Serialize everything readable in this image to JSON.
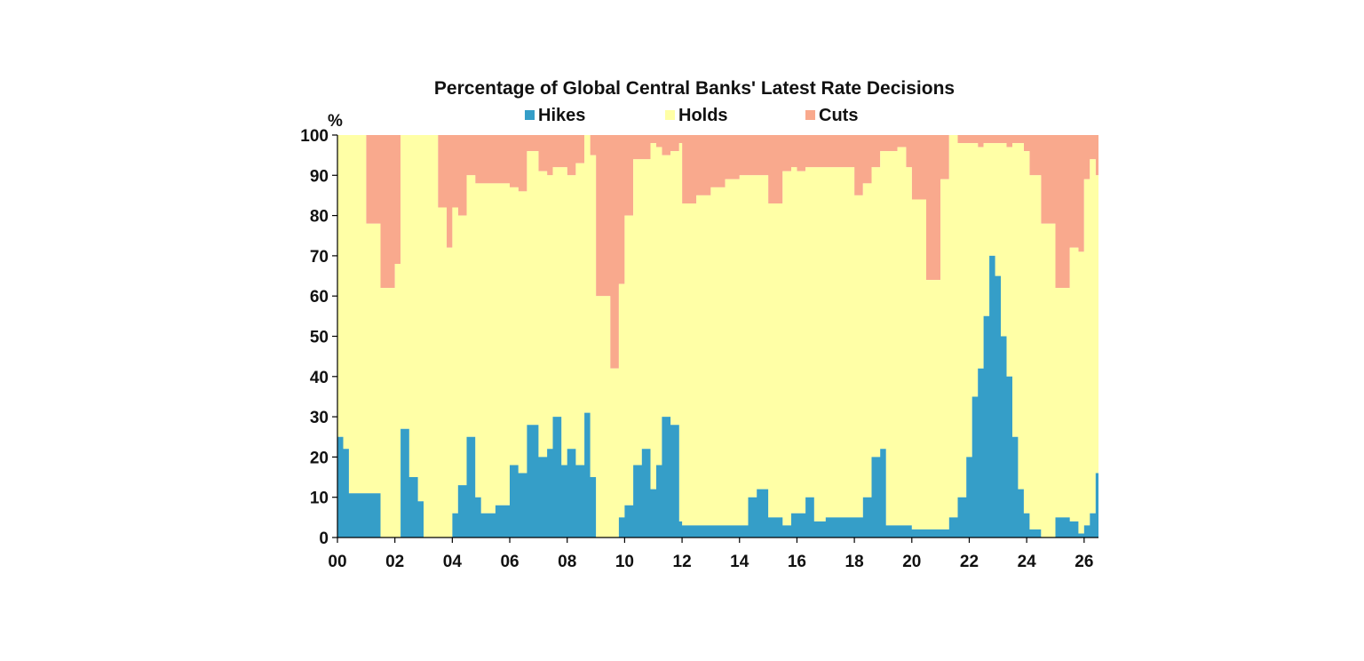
{
  "chart_data": {
    "type": "area",
    "stacked": true,
    "percent_stacked": true,
    "title": "Percentage of Global Central Banks' Latest Rate Decisions",
    "ylabel": "%",
    "xlabel": "",
    "ylim": [
      0,
      100
    ],
    "xlim": [
      2000,
      2026.5
    ],
    "yticks": [
      "0",
      "10",
      "20",
      "30",
      "40",
      "50",
      "60",
      "70",
      "80",
      "90",
      "100"
    ],
    "xticks": [
      {
        "x": 2000,
        "label": "00"
      },
      {
        "x": 2002,
        "label": "02"
      },
      {
        "x": 2004,
        "label": "04"
      },
      {
        "x": 2006,
        "label": "06"
      },
      {
        "x": 2008,
        "label": "08"
      },
      {
        "x": 2010,
        "label": "10"
      },
      {
        "x": 2012,
        "label": "12"
      },
      {
        "x": 2014,
        "label": "14"
      },
      {
        "x": 2016,
        "label": "16"
      },
      {
        "x": 2018,
        "label": "18"
      },
      {
        "x": 2020,
        "label": "20"
      },
      {
        "x": 2022,
        "label": "22"
      },
      {
        "x": 2024,
        "label": "24"
      },
      {
        "x": 2026,
        "label": "26"
      }
    ],
    "legend_position": "top-center",
    "grid": false,
    "colors": {
      "Hikes": "#359ec8",
      "Holds": "#ffffa6",
      "Cuts": "#f9a98d"
    },
    "series": [
      {
        "name": "Hikes",
        "x": [
          2000.0,
          2000.2,
          2000.4,
          2000.6,
          2001.0,
          2001.5,
          2002.0,
          2002.2,
          2002.5,
          2002.8,
          2003.0,
          2003.5,
          2003.8,
          2004.0,
          2004.2,
          2004.5,
          2004.8,
          2005.0,
          2005.5,
          2006.0,
          2006.3,
          2006.6,
          2007.0,
          2007.3,
          2007.5,
          2007.8,
          2008.0,
          2008.3,
          2008.6,
          2008.8,
          2009.0,
          2009.5,
          2009.8,
          2010.0,
          2010.3,
          2010.6,
          2010.9,
          2011.1,
          2011.3,
          2011.6,
          2011.9,
          2012.0,
          2012.5,
          2013.0,
          2013.5,
          2014.0,
          2014.3,
          2014.6,
          2015.0,
          2015.5,
          2015.8,
          2016.0,
          2016.3,
          2016.6,
          2017.0,
          2017.5,
          2018.0,
          2018.3,
          2018.6,
          2018.9,
          2019.1,
          2019.5,
          2019.8,
          2020.0,
          2020.5,
          2021.0,
          2021.3,
          2021.6,
          2021.9,
          2022.1,
          2022.3,
          2022.5,
          2022.7,
          2022.9,
          2023.1,
          2023.3,
          2023.5,
          2023.7,
          2023.9,
          2024.1,
          2024.5,
          2025.0,
          2025.5,
          2025.8,
          2026.0,
          2026.2,
          2026.4
        ],
        "values": [
          25,
          22,
          11,
          11,
          11,
          0,
          0,
          27,
          15,
          9,
          0,
          0,
          0,
          6,
          13,
          25,
          10,
          6,
          8,
          18,
          16,
          28,
          20,
          22,
          30,
          18,
          22,
          18,
          31,
          15,
          0,
          0,
          5,
          8,
          18,
          22,
          12,
          18,
          30,
          28,
          4,
          3,
          3,
          3,
          3,
          3,
          10,
          12,
          5,
          3,
          6,
          6,
          10,
          4,
          5,
          5,
          5,
          10,
          20,
          22,
          3,
          3,
          3,
          2,
          2,
          2,
          5,
          10,
          20,
          35,
          42,
          55,
          70,
          65,
          50,
          40,
          25,
          12,
          6,
          2,
          0,
          5,
          4,
          1,
          3,
          6,
          16
        ]
      },
      {
        "name": "Holds",
        "x": [
          2000.0,
          2000.2,
          2000.4,
          2000.6,
          2001.0,
          2001.5,
          2002.0,
          2002.2,
          2002.5,
          2002.8,
          2003.0,
          2003.5,
          2003.8,
          2004.0,
          2004.2,
          2004.5,
          2004.8,
          2005.0,
          2005.5,
          2006.0,
          2006.3,
          2006.6,
          2007.0,
          2007.3,
          2007.5,
          2007.8,
          2008.0,
          2008.3,
          2008.6,
          2008.8,
          2009.0,
          2009.5,
          2009.8,
          2010.0,
          2010.3,
          2010.6,
          2010.9,
          2011.1,
          2011.3,
          2011.6,
          2011.9,
          2012.0,
          2012.5,
          2013.0,
          2013.5,
          2014.0,
          2014.3,
          2014.6,
          2015.0,
          2015.5,
          2015.8,
          2016.0,
          2016.3,
          2016.6,
          2017.0,
          2017.5,
          2018.0,
          2018.3,
          2018.6,
          2018.9,
          2019.1,
          2019.5,
          2019.8,
          2020.0,
          2020.5,
          2021.0,
          2021.3,
          2021.6,
          2021.9,
          2022.1,
          2022.3,
          2022.5,
          2022.7,
          2022.9,
          2023.1,
          2023.3,
          2023.5,
          2023.7,
          2023.9,
          2024.1,
          2024.5,
          2025.0,
          2025.5,
          2025.8,
          2026.0,
          2026.2,
          2026.4
        ],
        "values": [
          75,
          78,
          89,
          89,
          67,
          62,
          68,
          73,
          85,
          91,
          100,
          82,
          72,
          76,
          67,
          65,
          78,
          82,
          80,
          69,
          70,
          68,
          71,
          68,
          62,
          74,
          68,
          75,
          69,
          80,
          60,
          42,
          58,
          72,
          76,
          72,
          86,
          79,
          65,
          68,
          94,
          80,
          82,
          84,
          86,
          87,
          80,
          78,
          78,
          88,
          86,
          85,
          82,
          88,
          87,
          87,
          80,
          78,
          72,
          74,
          93,
          94,
          89,
          82,
          62,
          87,
          95,
          88,
          78,
          63,
          55,
          43,
          28,
          33,
          48,
          57,
          73,
          86,
          90,
          88,
          78,
          57,
          68,
          70,
          86,
          88,
          74
        ]
      },
      {
        "name": "Cuts",
        "x": [
          2000.0,
          2000.2,
          2000.4,
          2000.6,
          2001.0,
          2001.5,
          2002.0,
          2002.2,
          2002.5,
          2002.8,
          2003.0,
          2003.5,
          2003.8,
          2004.0,
          2004.2,
          2004.5,
          2004.8,
          2005.0,
          2005.5,
          2006.0,
          2006.3,
          2006.6,
          2007.0,
          2007.3,
          2007.5,
          2007.8,
          2008.0,
          2008.3,
          2008.6,
          2008.8,
          2009.0,
          2009.5,
          2009.8,
          2010.0,
          2010.3,
          2010.6,
          2010.9,
          2011.1,
          2011.3,
          2011.6,
          2011.9,
          2012.0,
          2012.5,
          2013.0,
          2013.5,
          2014.0,
          2014.3,
          2014.6,
          2015.0,
          2015.5,
          2015.8,
          2016.0,
          2016.3,
          2016.6,
          2017.0,
          2017.5,
          2018.0,
          2018.3,
          2018.6,
          2018.9,
          2019.1,
          2019.5,
          2019.8,
          2020.0,
          2020.5,
          2021.0,
          2021.3,
          2021.6,
          2021.9,
          2022.1,
          2022.3,
          2022.5,
          2022.7,
          2022.9,
          2023.1,
          2023.3,
          2023.5,
          2023.7,
          2023.9,
          2024.1,
          2024.5,
          2025.0,
          2025.5,
          2025.8,
          2026.0,
          2026.2,
          2026.4
        ],
        "values": [
          0,
          0,
          0,
          0,
          22,
          38,
          32,
          0,
          0,
          0,
          0,
          18,
          28,
          18,
          20,
          10,
          12,
          12,
          12,
          13,
          14,
          4,
          9,
          10,
          8,
          8,
          10,
          7,
          0,
          5,
          40,
          58,
          37,
          20,
          6,
          6,
          2,
          3,
          5,
          4,
          2,
          17,
          15,
          13,
          11,
          10,
          10,
          10,
          17,
          9,
          8,
          9,
          8,
          8,
          8,
          8,
          15,
          12,
          8,
          4,
          4,
          3,
          8,
          16,
          36,
          11,
          0,
          2,
          2,
          2,
          3,
          2,
          2,
          2,
          2,
          3,
          2,
          2,
          4,
          10,
          22,
          38,
          28,
          29,
          11,
          6,
          10
        ]
      }
    ]
  }
}
